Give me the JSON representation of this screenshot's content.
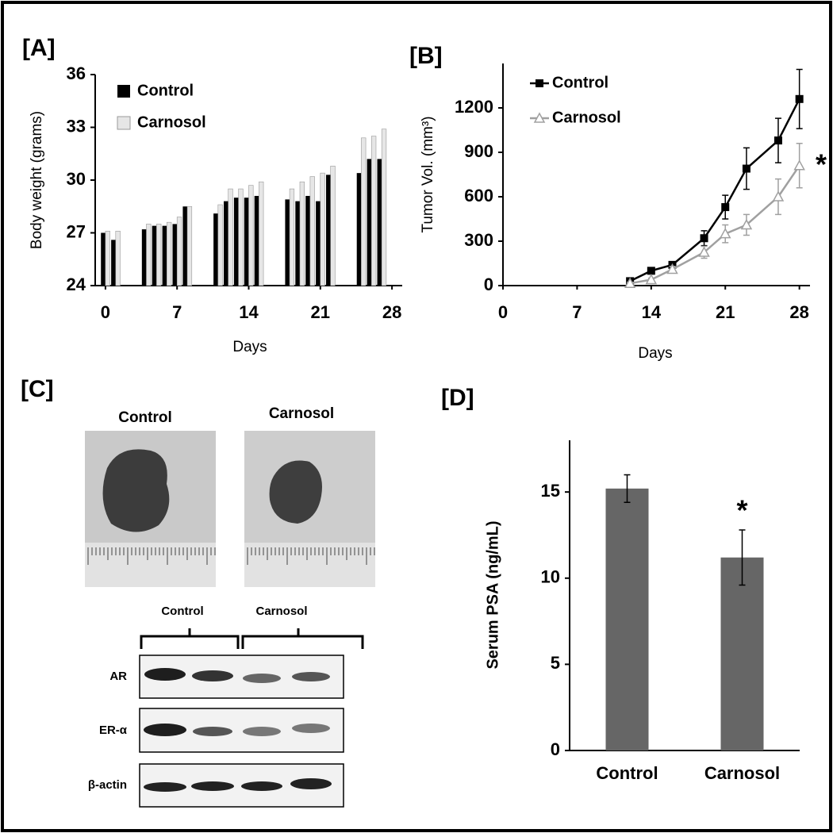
{
  "chart_data": [
    {
      "type": "bar",
      "panel_label": "[A]",
      "x_label": "Days",
      "y_label": "Body weight (grams)",
      "x": [
        0,
        1,
        4,
        5,
        6,
        7,
        8,
        11,
        12,
        13,
        14,
        15,
        18,
        19,
        20,
        21,
        22,
        25,
        26,
        27
      ],
      "series": [
        {
          "name": "Control",
          "color": "#000000",
          "values": [
            27.0,
            26.6,
            27.2,
            27.4,
            27.4,
            27.5,
            28.5,
            28.1,
            28.8,
            29.0,
            29.0,
            29.1,
            28.9,
            28.8,
            29.1,
            28.8,
            30.3,
            30.4,
            31.2,
            31.2
          ]
        },
        {
          "name": "Carnosol",
          "color": "#e6e6e6",
          "values": [
            27.1,
            27.1,
            27.5,
            27.5,
            27.6,
            27.9,
            28.5,
            28.6,
            29.5,
            29.5,
            29.7,
            29.9,
            29.5,
            29.9,
            30.2,
            30.4,
            30.8,
            32.4,
            32.5,
            32.9
          ]
        }
      ],
      "xlim": [
        -1,
        29
      ],
      "xticks": [
        0,
        7,
        14,
        21,
        28
      ],
      "ylim": [
        24,
        36
      ],
      "yticks": [
        24,
        27,
        30,
        33,
        36
      ],
      "grid": false
    },
    {
      "type": "line",
      "panel_label": "[B]",
      "x_label": "Days",
      "y_label": "Tumor Vol. (mm³)",
      "annotation": "*",
      "x": [
        12,
        14,
        16,
        19,
        21,
        23,
        26,
        28
      ],
      "series": [
        {
          "name": "Control",
          "color": "#000000",
          "marker": "square",
          "values": [
            30,
            100,
            140,
            320,
            530,
            790,
            980,
            1260
          ],
          "errors": [
            10,
            15,
            20,
            50,
            80,
            140,
            150,
            200
          ]
        },
        {
          "name": "Carnosol",
          "color": "#a0a0a0",
          "marker": "triangle",
          "values": [
            15,
            40,
            110,
            225,
            350,
            410,
            600,
            810
          ],
          "errors": [
            8,
            10,
            20,
            40,
            60,
            70,
            120,
            150
          ]
        }
      ],
      "xlim": [
        0,
        29
      ],
      "xticks": [
        0,
        7,
        14,
        21,
        28
      ],
      "ylim": [
        0,
        1500
      ],
      "yticks": [
        0,
        300,
        600,
        900,
        1200
      ],
      "grid": false
    },
    {
      "type": "bar",
      "panel_label": "[D]",
      "y_label": "Serum PSA (ng/mL)",
      "annotation": "*",
      "categories": [
        "Control",
        "Carnosol"
      ],
      "values": [
        15.2,
        11.2
      ],
      "errors": [
        0.8,
        1.6
      ],
      "color": "#666666",
      "ylim": [
        0,
        18
      ],
      "yticks": [
        0,
        5,
        10,
        15
      ],
      "grid": false
    }
  ],
  "panel_c": {
    "panel_label": "[C]",
    "photo_labels": [
      "Control",
      "Carnosol"
    ],
    "blot_groups": [
      "Control",
      "Carnosol"
    ],
    "blot_rows": [
      "AR",
      "ER-α",
      "β-actin"
    ]
  }
}
